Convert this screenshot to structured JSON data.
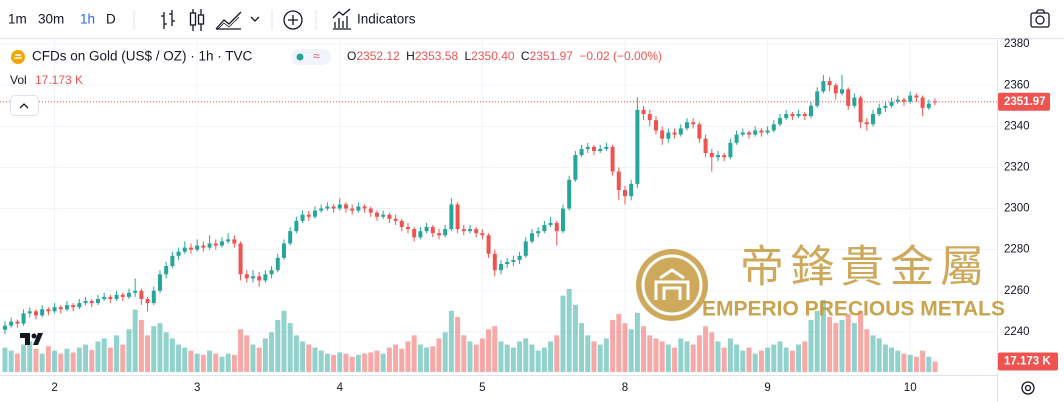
{
  "toolbar": {
    "intervals": [
      "1m",
      "30m",
      "1h",
      "D"
    ],
    "indicators": "Indicators"
  },
  "chart_data": {
    "type": "candlestick",
    "title": "CFDs on Gold (US$ / OZ) · 1h · TVC",
    "ohlc_names": [
      "O",
      "H",
      "L",
      "C"
    ],
    "ohlc_labels": [
      "2352.12",
      "2353.58",
      "2350.40",
      "2351.97"
    ],
    "change_label": "−0.02 (−0.00%)",
    "volume_name": "Vol",
    "volume_label": "17.173 K",
    "watermark": {
      "name": "帝鋒貴金屬",
      "subtitle": "EMPERIO PRECIOUS METALS"
    },
    "up_color": "#26a69a",
    "down_color": "#ef5350",
    "ylim": [
      2219,
      2382.5
    ],
    "yticks": [
      2240,
      2260,
      2280,
      2300,
      2320,
      2340,
      2360,
      2380
    ],
    "vlim": [
      0,
      550
    ],
    "xlim": [
      -0.8,
      160
    ],
    "xticks": [
      {
        "value": 8,
        "label": "2"
      },
      {
        "value": 31,
        "label": "3"
      },
      {
        "value": 54,
        "label": "4"
      },
      {
        "value": 77,
        "label": "5"
      },
      {
        "value": 100,
        "label": "8"
      },
      {
        "value": 123,
        "label": "9"
      },
      {
        "value": 146,
        "label": "10"
      }
    ],
    "candles": [
      [
        2241,
        2245,
        2239,
        2243
      ],
      [
        2243,
        2247,
        2242,
        2245
      ],
      [
        2245,
        2246,
        2242,
        2244
      ],
      [
        2244,
        2251,
        2243,
        2249
      ],
      [
        2249,
        2252,
        2247,
        2250
      ],
      [
        2250,
        2251,
        2246,
        2248
      ],
      [
        2248,
        2253,
        2247,
        2251
      ],
      [
        2251,
        2252,
        2248,
        2250
      ],
      [
        2250,
        2254,
        2249,
        2252
      ],
      [
        2252,
        2253,
        2249,
        2251
      ],
      [
        2251,
        2255,
        2250,
        2253
      ],
      [
        2253,
        2254,
        2250,
        2252
      ],
      [
        2252,
        2256,
        2251,
        2254
      ],
      [
        2254,
        2257,
        2253,
        2255
      ],
      [
        2255,
        2256,
        2252,
        2254
      ],
      [
        2254,
        2258,
        2253,
        2256
      ],
      [
        2256,
        2259,
        2255,
        2257
      ],
      [
        2257,
        2258,
        2254,
        2256
      ],
      [
        2256,
        2260,
        2255,
        2258
      ],
      [
        2258,
        2259,
        2255,
        2257
      ],
      [
        2257,
        2261,
        2256,
        2259
      ],
      [
        2259,
        2266,
        2257,
        2260
      ],
      [
        2260,
        2261,
        2253,
        2256
      ],
      [
        2256,
        2257,
        2250,
        2254
      ],
      [
        2254,
        2262,
        2253,
        2260
      ],
      [
        2260,
        2270,
        2259,
        2268
      ],
      [
        2268,
        2274,
        2266,
        2272
      ],
      [
        2272,
        2279,
        2271,
        2277
      ],
      [
        2277,
        2281,
        2275,
        2279
      ],
      [
        2279,
        2284,
        2278,
        2281
      ],
      [
        2281,
        2283,
        2278,
        2280
      ],
      [
        2280,
        2285,
        2279,
        2282
      ],
      [
        2282,
        2284,
        2279,
        2281
      ],
      [
        2281,
        2287,
        2280,
        2283
      ],
      [
        2283,
        2285,
        2280,
        2282
      ],
      [
        2282,
        2286,
        2281,
        2284
      ],
      [
        2284,
        2288,
        2283,
        2285
      ],
      [
        2285,
        2287,
        2281,
        2283
      ],
      [
        2283,
        2284,
        2265,
        2268
      ],
      [
        2268,
        2270,
        2264,
        2266
      ],
      [
        2266,
        2270,
        2264,
        2267
      ],
      [
        2267,
        2269,
        2262,
        2265
      ],
      [
        2265,
        2270,
        2264,
        2268
      ],
      [
        2268,
        2272,
        2266,
        2270
      ],
      [
        2270,
        2278,
        2269,
        2276
      ],
      [
        2276,
        2285,
        2275,
        2283
      ],
      [
        2283,
        2291,
        2282,
        2289
      ],
      [
        2289,
        2296,
        2288,
        2294
      ],
      [
        2294,
        2299,
        2293,
        2297
      ],
      [
        2297,
        2299,
        2294,
        2296
      ],
      [
        2296,
        2301,
        2295,
        2299
      ],
      [
        2299,
        2302,
        2298,
        2300
      ],
      [
        2300,
        2303,
        2299,
        2301
      ],
      [
        2301,
        2302,
        2298,
        2300
      ],
      [
        2300,
        2305,
        2299,
        2302
      ],
      [
        2302,
        2303,
        2298,
        2300
      ],
      [
        2300,
        2302,
        2297,
        2299
      ],
      [
        2299,
        2303,
        2298,
        2301
      ],
      [
        2301,
        2302,
        2298,
        2300
      ],
      [
        2300,
        2301,
        2296,
        2298
      ],
      [
        2298,
        2299,
        2294,
        2296
      ],
      [
        2296,
        2299,
        2295,
        2297
      ],
      [
        2297,
        2298,
        2293,
        2295
      ],
      [
        2295,
        2297,
        2292,
        2294
      ],
      [
        2294,
        2295,
        2289,
        2291
      ],
      [
        2291,
        2293,
        2288,
        2290
      ],
      [
        2290,
        2291,
        2284,
        2286
      ],
      [
        2286,
        2291,
        2285,
        2289
      ],
      [
        2289,
        2293,
        2288,
        2291
      ],
      [
        2291,
        2292,
        2286,
        2288
      ],
      [
        2288,
        2290,
        2285,
        2287
      ],
      [
        2287,
        2292,
        2286,
        2290
      ],
      [
        2290,
        2305,
        2289,
        2302
      ],
      [
        2302,
        2303,
        2288,
        2290
      ],
      [
        2290,
        2292,
        2287,
        2289
      ],
      [
        2289,
        2292,
        2288,
        2290
      ],
      [
        2290,
        2291,
        2286,
        2288
      ],
      [
        2288,
        2290,
        2285,
        2287
      ],
      [
        2287,
        2288,
        2276,
        2278
      ],
      [
        2278,
        2280,
        2267,
        2270
      ],
      [
        2270,
        2275,
        2268,
        2273
      ],
      [
        2273,
        2276,
        2271,
        2274
      ],
      [
        2274,
        2277,
        2272,
        2275
      ],
      [
        2275,
        2279,
        2273,
        2277
      ],
      [
        2277,
        2286,
        2276,
        2284
      ],
      [
        2284,
        2290,
        2283,
        2288
      ],
      [
        2288,
        2291,
        2286,
        2289
      ],
      [
        2289,
        2294,
        2288,
        2292
      ],
      [
        2292,
        2296,
        2291,
        2293
      ],
      [
        2293,
        2294,
        2282,
        2289
      ],
      [
        2289,
        2302,
        2288,
        2300
      ],
      [
        2300,
        2316,
        2299,
        2314
      ],
      [
        2314,
        2328,
        2313,
        2326
      ],
      [
        2326,
        2331,
        2325,
        2329
      ],
      [
        2329,
        2332,
        2327,
        2330
      ],
      [
        2330,
        2331,
        2326,
        2328
      ],
      [
        2328,
        2331,
        2327,
        2329
      ],
      [
        2329,
        2332,
        2328,
        2330
      ],
      [
        2330,
        2331,
        2316,
        2318
      ],
      [
        2318,
        2320,
        2304,
        2309
      ],
      [
        2309,
        2311,
        2302,
        2306
      ],
      [
        2306,
        2314,
        2304,
        2312
      ],
      [
        2312,
        2354,
        2310,
        2348
      ],
      [
        2348,
        2350,
        2343,
        2346
      ],
      [
        2346,
        2348,
        2340,
        2343
      ],
      [
        2343,
        2345,
        2336,
        2338
      ],
      [
        2338,
        2340,
        2331,
        2334
      ],
      [
        2334,
        2339,
        2332,
        2337
      ],
      [
        2337,
        2339,
        2334,
        2336
      ],
      [
        2336,
        2341,
        2335,
        2339
      ],
      [
        2339,
        2344,
        2338,
        2342
      ],
      [
        2342,
        2344,
        2339,
        2341
      ],
      [
        2341,
        2342,
        2332,
        2334
      ],
      [
        2334,
        2336,
        2325,
        2327
      ],
      [
        2327,
        2329,
        2318,
        2325
      ],
      [
        2325,
        2328,
        2323,
        2326
      ],
      [
        2326,
        2327,
        2323,
        2325
      ],
      [
        2325,
        2334,
        2324,
        2332
      ],
      [
        2332,
        2338,
        2331,
        2336
      ],
      [
        2336,
        2339,
        2335,
        2337
      ],
      [
        2337,
        2338,
        2334,
        2336
      ],
      [
        2336,
        2340,
        2335,
        2338
      ],
      [
        2338,
        2339,
        2335,
        2337
      ],
      [
        2337,
        2340,
        2336,
        2338
      ],
      [
        2338,
        2343,
        2337,
        2341
      ],
      [
        2341,
        2346,
        2340,
        2344
      ],
      [
        2344,
        2348,
        2343,
        2346
      ],
      [
        2346,
        2347,
        2343,
        2345
      ],
      [
        2345,
        2348,
        2344,
        2346
      ],
      [
        2346,
        2347,
        2343,
        2345
      ],
      [
        2345,
        2352,
        2344,
        2350
      ],
      [
        2350,
        2359,
        2349,
        2357
      ],
      [
        2357,
        2365,
        2356,
        2362
      ],
      [
        2362,
        2364,
        2357,
        2360
      ],
      [
        2360,
        2361,
        2353,
        2356
      ],
      [
        2356,
        2365,
        2355,
        2358
      ],
      [
        2358,
        2359,
        2348,
        2350
      ],
      [
        2350,
        2356,
        2349,
        2354
      ],
      [
        2354,
        2355,
        2339,
        2342
      ],
      [
        2342,
        2344,
        2338,
        2341
      ],
      [
        2341,
        2348,
        2340,
        2346
      ],
      [
        2346,
        2351,
        2345,
        2349
      ],
      [
        2349,
        2352,
        2347,
        2350
      ],
      [
        2350,
        2354,
        2349,
        2352
      ],
      [
        2352,
        2355,
        2351,
        2353
      ],
      [
        2353,
        2354,
        2350,
        2352
      ],
      [
        2352,
        2357,
        2351,
        2355
      ],
      [
        2355,
        2356,
        2352,
        2354
      ],
      [
        2354,
        2355,
        2345,
        2349
      ],
      [
        2349,
        2353,
        2348,
        2351
      ],
      [
        2352.12,
        2353.58,
        2350.4,
        2351.97
      ]
    ],
    "volumes": [
      40,
      35,
      30,
      45,
      50,
      38,
      30,
      42,
      35,
      30,
      38,
      32,
      40,
      45,
      36,
      50,
      55,
      40,
      60,
      45,
      70,
      102,
      85,
      60,
      75,
      80,
      65,
      55,
      45,
      40,
      35,
      30,
      28,
      35,
      30,
      25,
      30,
      28,
      70,
      60,
      45,
      40,
      55,
      65,
      85,
      100,
      80,
      60,
      50,
      45,
      40,
      35,
      30,
      28,
      32,
      30,
      25,
      28,
      30,
      32,
      35,
      30,
      40,
      45,
      38,
      50,
      60,
      45,
      40,
      42,
      55,
      65,
      100,
      90,
      60,
      50,
      45,
      55,
      70,
      75,
      50,
      45,
      40,
      50,
      55,
      45,
      35,
      40,
      50,
      60,
      125,
      136,
      110,
      80,
      60,
      50,
      45,
      55,
      85,
      95,
      80,
      70,
      97,
      75,
      60,
      55,
      50,
      45,
      40,
      55,
      50,
      45,
      60,
      75,
      65,
      50,
      40,
      55,
      45,
      35,
      40,
      30,
      35,
      40,
      45,
      50,
      40,
      35,
      45,
      50,
      85,
      100,
      118,
      90,
      80,
      85,
      95,
      80,
      100,
      70,
      60,
      55,
      45,
      40,
      35,
      30,
      28,
      25,
      35,
      25,
      17.173
    ]
  }
}
